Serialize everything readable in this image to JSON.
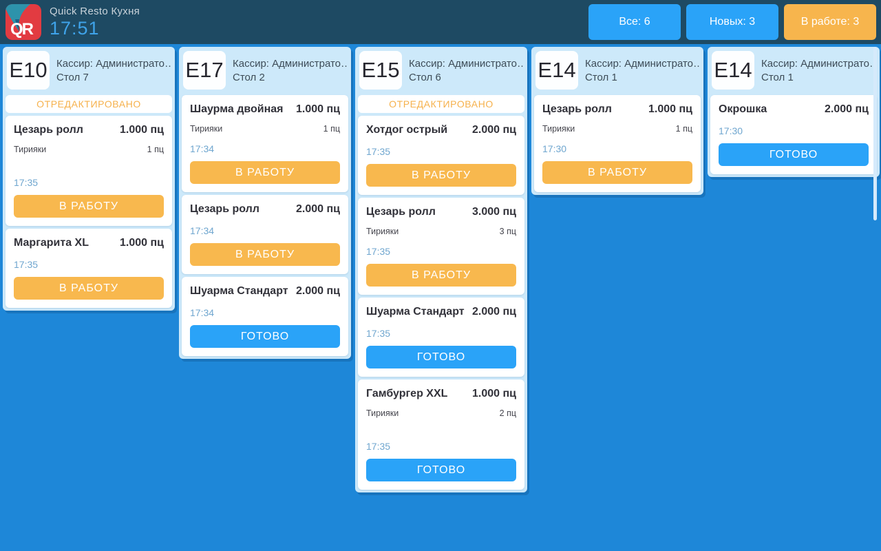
{
  "topbar": {
    "app_title": "Quick Resto Кухня",
    "clock": "17:51",
    "logo_text": "QR",
    "filters": [
      {
        "label": "Все: 6",
        "active": false
      },
      {
        "label": "Новых: 3",
        "active": false
      },
      {
        "label": "В работе: 3",
        "active": true
      }
    ]
  },
  "colors": {
    "topbar_bg": "#1e4a63",
    "board_bg": "#1e87d8",
    "column_bg": "#cde9fa",
    "orange_accent": "#f8b84e",
    "blue_accent": "#2aa3f8",
    "time_text": "#6fa6cf",
    "edited_text": "#f6b14c",
    "logo_red": "#e23b41",
    "logo_teal": "#2d93ab"
  },
  "orders": [
    {
      "code": "E10",
      "cashier": "Кассир: Администрато…",
      "table": "Стол 7",
      "edited_label": "ОТРЕДАКТИРОВАНО",
      "items": [
        {
          "name": "Цезарь ролл",
          "qty": "1.000 пц",
          "modifiers": [
            {
              "name": "Тирияки",
              "qty": "1 пц"
            }
          ],
          "gap": true,
          "time": "17:35",
          "action": "В РАБОТУ",
          "status": "new"
        },
        {
          "name": "Маргарита XL",
          "qty": "1.000 пц",
          "modifiers": [],
          "gap": false,
          "time": "17:35",
          "action": "В РАБОТУ",
          "status": "new"
        }
      ]
    },
    {
      "code": "E17",
      "cashier": "Кассир: Администрато…",
      "table": "Стол 2",
      "edited_label": null,
      "items": [
        {
          "name": "Шаурма двойная",
          "qty": "1.000 пц",
          "modifiers": [
            {
              "name": "Тирияки",
              "qty": "1 пц"
            }
          ],
          "gap": false,
          "time": "17:34",
          "action": "В РАБОТУ",
          "status": "new"
        },
        {
          "name": "Цезарь ролл",
          "qty": "2.000 пц",
          "modifiers": [],
          "gap": false,
          "time": "17:34",
          "action": "В РАБОТУ",
          "status": "new"
        },
        {
          "name": "Шуарма Стандарт",
          "qty": "2.000 пц",
          "modifiers": [],
          "gap": false,
          "time": "17:34",
          "action": "ГОТОВО",
          "status": "ready"
        }
      ]
    },
    {
      "code": "E15",
      "cashier": "Кассир: Администрато…",
      "table": "Стол 6",
      "edited_label": "ОТРЕДАКТИРОВАНО",
      "items": [
        {
          "name": "Хотдог острый",
          "qty": "2.000 пц",
          "modifiers": [],
          "gap": false,
          "time": "17:35",
          "action": "В РАБОТУ",
          "status": "new"
        },
        {
          "name": "Цезарь ролл",
          "qty": "3.000 пц",
          "modifiers": [
            {
              "name": "Тирияки",
              "qty": "3 пц"
            }
          ],
          "gap": false,
          "time": "17:35",
          "action": "В РАБОТУ",
          "status": "new"
        },
        {
          "name": "Шуарма Стандарт",
          "qty": "2.000 пц",
          "modifiers": [],
          "gap": false,
          "time": "17:35",
          "action": "ГОТОВО",
          "status": "ready"
        },
        {
          "name": "Гамбургер XXL",
          "qty": "1.000 пц",
          "modifiers": [
            {
              "name": "Тирияки",
              "qty": "2 пц"
            }
          ],
          "gap": true,
          "time": "17:35",
          "action": "ГОТОВО",
          "status": "ready"
        }
      ]
    },
    {
      "code": "E14",
      "cashier": "Кассир: Администрато…",
      "table": "Стол 1",
      "edited_label": null,
      "items": [
        {
          "name": "Цезарь ролл",
          "qty": "1.000 пц",
          "modifiers": [
            {
              "name": "Тирияки",
              "qty": "1 пц"
            }
          ],
          "gap": false,
          "time": "17:30",
          "action": "В РАБОТУ",
          "status": "new"
        }
      ]
    },
    {
      "code": "E14",
      "cashier": "Кассир: Администрато…",
      "table": "Стол 1",
      "edited_label": null,
      "items": [
        {
          "name": "Окрошка",
          "qty": "2.000 пц",
          "modifiers": [],
          "gap": false,
          "time": "17:30",
          "action": "ГОТОВО",
          "status": "ready"
        }
      ]
    }
  ]
}
